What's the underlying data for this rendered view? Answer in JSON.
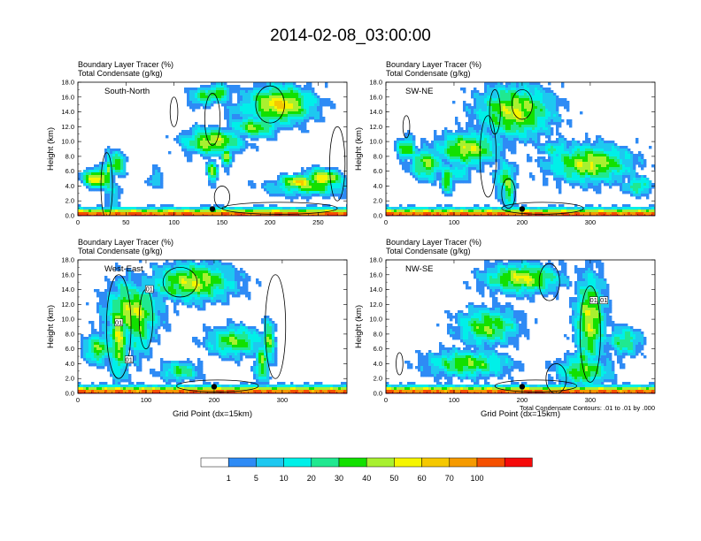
{
  "page_title": "2014-02-08_03:00:00",
  "colorbar": {
    "labels": [
      "1",
      "5",
      "10",
      "20",
      "30",
      "40",
      "50",
      "60",
      "70",
      "100"
    ],
    "colors": [
      "#ffffff",
      "#2e8bf5",
      "#1ec8f0",
      "#00f0e8",
      "#20e890",
      "#12e000",
      "#a8f030",
      "#f5f500",
      "#f5c800",
      "#f59a00",
      "#f55000",
      "#f50a0a"
    ]
  },
  "footnote": "Total Condensate Contours: .01 to .01 by .000",
  "chart_data": [
    {
      "type": "heatmap",
      "panel_label": "South-North",
      "title_line1": "Boundary Layer Tracer    (%)",
      "title_line2": "Total Condensate   (g/kg)",
      "ylabel": "Height (km)",
      "xlabel": "",
      "ylim": [
        0,
        18
      ],
      "xlim": [
        0,
        280
      ],
      "yticks": [
        "0.0",
        "2.0",
        "4.0",
        "6.0",
        "8.0",
        "10.0",
        "12.0",
        "14.0",
        "16.0",
        "18.0"
      ],
      "xticks": [
        0,
        50,
        100,
        150,
        200,
        250
      ],
      "marker": [
        140,
        0.9
      ],
      "blobs": [
        [
          210,
          15,
          35,
          2.5,
          8
        ],
        [
          140,
          10,
          30,
          1.8,
          7
        ],
        [
          20,
          5,
          15,
          1.3,
          8
        ],
        [
          255,
          5,
          20,
          1.3,
          8
        ],
        [
          30,
          5,
          1.5,
          4,
          5
        ],
        [
          32,
          6,
          2,
          3,
          6
        ],
        [
          38,
          3,
          8,
          2.2,
          3
        ],
        [
          40,
          7,
          10,
          1.5,
          6
        ],
        [
          140,
          6,
          6,
          1.5,
          6
        ],
        [
          155,
          8,
          6,
          1.5,
          6
        ],
        [
          185,
          12,
          25,
          1.5,
          6
        ],
        [
          240,
          4,
          40,
          1.3,
          6
        ],
        [
          230,
          4.5,
          20,
          1,
          8
        ],
        [
          130,
          16,
          14,
          1.3,
          5
        ],
        [
          145,
          16.5,
          15,
          1.2,
          6
        ],
        [
          210,
          15,
          25,
          1.6,
          4
        ],
        [
          170,
          14,
          20,
          1.5,
          3
        ],
        [
          80,
          5,
          8,
          1.3,
          3
        ]
      ],
      "contours": [
        [
          100,
          14,
          4,
          2
        ],
        [
          140,
          13,
          8,
          3.5
        ],
        [
          200,
          15,
          15,
          2.5
        ],
        [
          30,
          4,
          6,
          4.5
        ],
        [
          270,
          7,
          8,
          5
        ],
        [
          150,
          2.5,
          8,
          1.5
        ],
        [
          210,
          1,
          60,
          0.8
        ]
      ]
    },
    {
      "type": "heatmap",
      "panel_label": "SW-NE",
      "title_line1": "Boundary Layer Tracer    (%)",
      "title_line2": "Total Condensate   (g/kg)",
      "ylabel": "Height (km)",
      "xlabel": "",
      "ylim": [
        0,
        18
      ],
      "xlim": [
        0,
        395
      ],
      "yticks": [
        "0.0",
        "2.0",
        "4.0",
        "6.0",
        "8.0",
        "10.0",
        "12.0",
        "14.0",
        "16.0",
        "18.0"
      ],
      "xticks": [
        0,
        100,
        200,
        300
      ],
      "marker": [
        200,
        0.9
      ],
      "blobs": [
        [
          190,
          14,
          55,
          3.5,
          7
        ],
        [
          120,
          9,
          45,
          2.2,
          7
        ],
        [
          300,
          7,
          60,
          2.5,
          7
        ],
        [
          60,
          7,
          25,
          2.2,
          6
        ],
        [
          30,
          9,
          15,
          1.5,
          6
        ],
        [
          180,
          4,
          10,
          3,
          6
        ],
        [
          175,
          5,
          15,
          2.5,
          5
        ],
        [
          90,
          5,
          10,
          2,
          6
        ],
        [
          300,
          6,
          50,
          1.5,
          5
        ],
        [
          370,
          4,
          20,
          1.3,
          5
        ],
        [
          180,
          16,
          30,
          1.5,
          5
        ],
        [
          200,
          13,
          20,
          1.2,
          4
        ],
        [
          110,
          6,
          15,
          1.5,
          4
        ],
        [
          250,
          9,
          25,
          1.3,
          4
        ]
      ],
      "contours": [
        [
          160,
          14,
          8,
          3
        ],
        [
          150,
          8,
          12,
          5.5
        ],
        [
          200,
          15,
          15,
          2
        ],
        [
          180,
          3,
          10,
          2
        ],
        [
          230,
          1,
          60,
          0.8
        ],
        [
          30,
          12,
          5,
          1.5
        ]
      ]
    },
    {
      "type": "heatmap",
      "panel_label": "West-East",
      "title_line1": "Boundary Layer Tracer    (%)",
      "title_line2": "Total Condensate   (g/kg)",
      "ylabel": "Height (km)",
      "xlabel": "Grid Point (dx=15km)",
      "ylim": [
        0,
        18
      ],
      "xlim": [
        0,
        395
      ],
      "yticks": [
        "0.0",
        "2.0",
        "4.0",
        "6.0",
        "8.0",
        "10.0",
        "12.0",
        "14.0",
        "16.0",
        "18.0"
      ],
      "xticks": [
        0,
        100,
        200,
        300
      ],
      "marker": [
        200,
        0.9
      ],
      "blobs": [
        [
          60,
          8,
          15,
          6,
          7
        ],
        [
          90,
          10,
          20,
          5,
          6
        ],
        [
          170,
          15,
          60,
          2.5,
          7
        ],
        [
          80,
          11,
          40,
          3.5,
          7
        ],
        [
          30,
          6,
          20,
          2,
          6
        ],
        [
          230,
          7,
          40,
          2,
          6
        ],
        [
          270,
          4,
          10,
          3,
          6
        ],
        [
          280,
          7,
          10,
          3,
          6
        ],
        [
          60,
          5,
          8,
          3,
          6
        ],
        [
          150,
          3,
          30,
          1.3,
          5
        ],
        [
          70,
          13,
          15,
          3,
          5
        ],
        [
          140,
          14,
          30,
          1.5,
          5
        ],
        [
          170,
          16,
          25,
          1.2,
          4
        ],
        [
          65,
          6,
          8,
          3,
          3
        ],
        [
          275,
          3,
          8,
          2,
          3
        ]
      ],
      "contours": [
        [
          60,
          9,
          18,
          7
        ],
        [
          100,
          10,
          10,
          4
        ],
        [
          290,
          9,
          15,
          7
        ],
        [
          150,
          15,
          25,
          2
        ],
        [
          205,
          1,
          60,
          0.8
        ]
      ],
      "labels": [
        [
          60,
          9.5,
          "01"
        ],
        [
          75,
          4.5,
          "01"
        ],
        [
          105,
          14,
          "01"
        ]
      ]
    },
    {
      "type": "heatmap",
      "panel_label": "NW-SE",
      "title_line1": "Boundary Layer Tracer    (%)",
      "title_line2": "Total Condensate   (g/kg)",
      "ylabel": "Height (km)",
      "xlabel": "Grid Point (dx=15km)",
      "ylim": [
        0,
        18
      ],
      "xlim": [
        0,
        395
      ],
      "yticks": [
        "0.0",
        "2.0",
        "4.0",
        "6.0",
        "8.0",
        "10.0",
        "12.0",
        "14.0",
        "16.0",
        "18.0"
      ],
      "xticks": [
        0,
        100,
        200,
        300
      ],
      "marker": [
        200,
        0.9
      ],
      "blobs": [
        [
          200,
          15.5,
          55,
          2,
          7
        ],
        [
          300,
          10,
          22,
          6,
          7
        ],
        [
          150,
          9,
          45,
          2.5,
          6
        ],
        [
          120,
          4,
          60,
          1.8,
          6
        ],
        [
          290,
          3,
          40,
          2,
          6
        ],
        [
          350,
          7,
          25,
          2,
          5
        ],
        [
          300,
          8,
          10,
          5,
          6
        ],
        [
          305,
          12,
          10,
          2,
          5
        ],
        [
          290,
          5,
          15,
          1.5,
          5
        ],
        [
          200,
          16,
          25,
          1.2,
          5
        ]
      ],
      "contours": [
        [
          240,
          15,
          15,
          2.5
        ],
        [
          300,
          8,
          15,
          6.5
        ],
        [
          250,
          2,
          15,
          2
        ],
        [
          20,
          4,
          5,
          1.5
        ],
        [
          220,
          1,
          60,
          0.8
        ]
      ],
      "labels": [
        [
          305,
          12.5,
          "01"
        ],
        [
          320,
          12.5,
          "01"
        ]
      ]
    }
  ]
}
